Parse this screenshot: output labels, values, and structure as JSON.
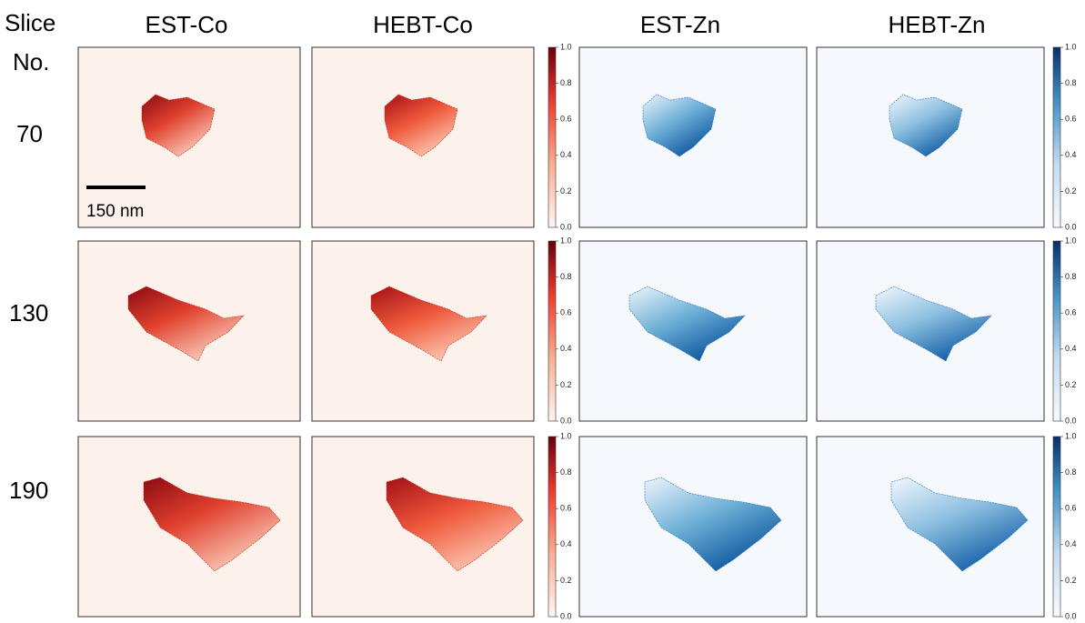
{
  "header": {
    "slice_label": "Slice",
    "no_label": "No.",
    "columns": [
      "EST-Co",
      "HEBT-Co",
      "EST-Zn",
      "HEBT-Zn"
    ]
  },
  "rows": [
    {
      "label": "70"
    },
    {
      "label": "130"
    },
    {
      "label": "190"
    }
  ],
  "scale_bar": "150 nm",
  "colorbar_ticks": [
    {
      "value": 0,
      "label": "0.0"
    },
    {
      "value": 0.2,
      "label": "0.2"
    },
    {
      "value": 0.4,
      "label": "0.4"
    },
    {
      "value": 0.6,
      "label": "0.6"
    },
    {
      "value": 0.8,
      "label": "0.8"
    },
    {
      "value": 1,
      "label": "1.0"
    }
  ]
}
